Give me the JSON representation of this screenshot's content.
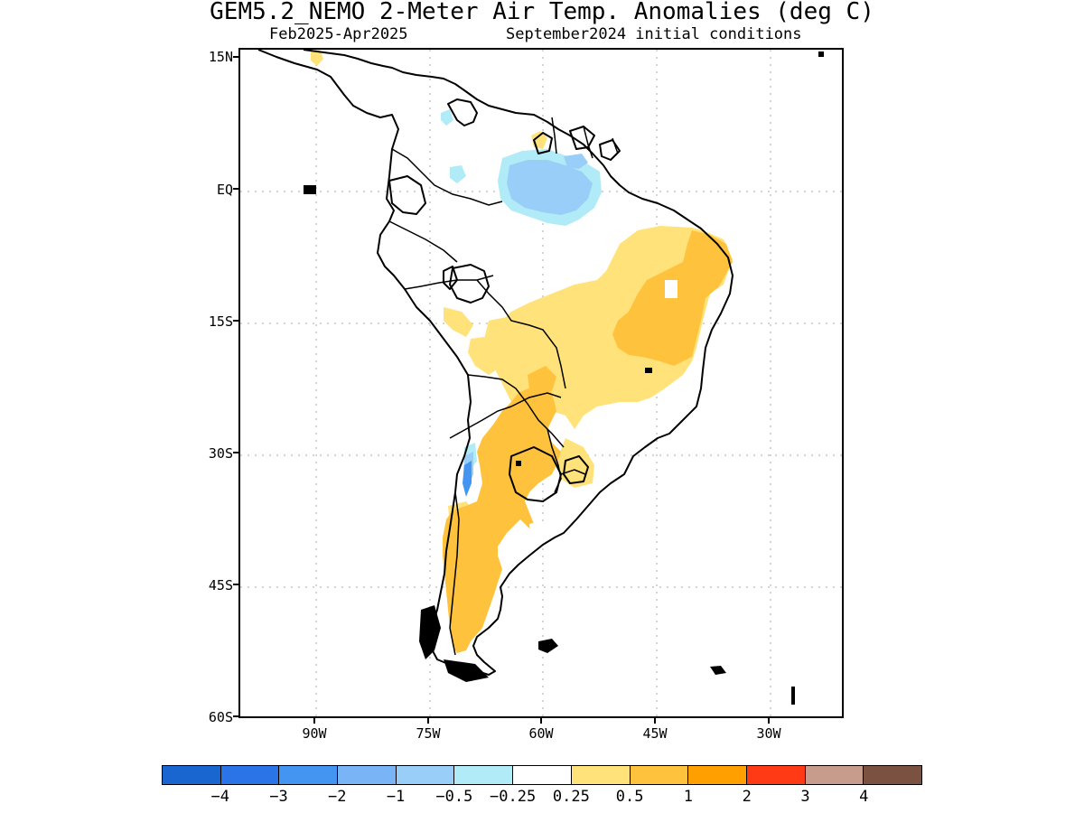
{
  "title": "GEM5.2_NEMO 2-Meter Air Temp. Anomalies (deg C)",
  "subtitle_left": "Feb2025-Apr2025",
  "subtitle_right": "September2024 initial conditions",
  "lat_labels": [
    "15N",
    "EQ",
    "15S",
    "30S",
    "45S",
    "60S"
  ],
  "lon_labels": [
    "90W",
    "75W",
    "60W",
    "45W",
    "30W"
  ],
  "colorbar": {
    "colors": [
      "#1a66d1",
      "#2b74e8",
      "#4495f2",
      "#79b5f6",
      "#99cef9",
      "#b0ebf7",
      "#ffffff",
      "#ffe27a",
      "#ffc23c",
      "#ffa000",
      "#ff3a14",
      "#c89c8c",
      "#7b5142"
    ],
    "labels": [
      "-4",
      "-3",
      "-2",
      "-1",
      "-0.5",
      "-0.25",
      "0.25",
      "0.5",
      "1",
      "2",
      "3",
      "4"
    ]
  }
}
